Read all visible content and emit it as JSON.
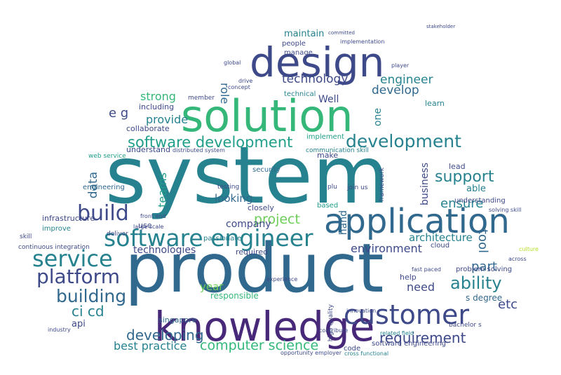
{
  "words": {
    "system": "system",
    "product": "product",
    "solution": "solution",
    "design": "design",
    "knowledge": "knowledge",
    "application": "application",
    "software_engineer": "software engineer",
    "customer": "customer",
    "service": "service",
    "platform": "platform",
    "build": "build",
    "building": "building",
    "developing": "developing",
    "software_development": "software development",
    "development": "development",
    "ability": "ability",
    "support": "support",
    "project": "project",
    "requirement": "requirement",
    "computer_science": "computer science",
    "best_practice": "best practice",
    "engineer": "engineer",
    "develop": "develop",
    "technology": "technology",
    "maintain": "maintain",
    "environment": "environment",
    "architecture": "architecture",
    "ensure": "ensure",
    "part": "part",
    "etc": "etc",
    "need": "need",
    "year": "year",
    "company": "company",
    "strong": "strong",
    "provide": "provide",
    "collaborate": "collaborate",
    "including": "including",
    "looking": "looking",
    "data": "data",
    "ci_cd": "ci cd",
    "api": "api",
    "e_g": "e g",
    "infrastructure": "infrastructure",
    "improve": "improve",
    "engineering": "engineering",
    "web_service": "web service",
    "understand": "understand",
    "technologies": "technologies",
    "singapore": "singapore",
    "required": "required",
    "closely": "closely",
    "well": "Well",
    "business": "business",
    "hand": "hand",
    "responsible": "responsible",
    "security": "security",
    "implement": "implement",
    "technical": "technical",
    "people": "people",
    "cloud": "cloud",
    "based": "based",
    "code": "code",
    "team": "teams",
    "role": "role",
    "tool": "tool",
    "one": "one",
    "help": "help",
    "learn": "learn",
    "lead": "lead",
    "use": "use",
    "make": "make",
    "able": "able",
    "understanding": "understanding",
    "software_engineering": "software engineering",
    "passionate": "passionate",
    "problem_solving": "problem solving",
    "solving_skill": "solving skill",
    "join_us": "join us",
    "plus": "plu",
    "distributed_system": "distributed system",
    "communication_skill": "communication skill",
    "bachelor_s_degree": "bachelor s",
    "s_degree": "s degree",
    "opportunity_employer": "opportunity employer",
    "cross_functional": "cross functional",
    "member": "member",
    "experience": "experience",
    "deliver": "deliver",
    "fast_paced": "fast paced",
    "related_field": "related field",
    "skill": "skill",
    "industry": "industry",
    "continuous_integration": "continuous integration",
    "concept": "concept",
    "drive": "drive",
    "global": "global",
    "manage": "manage",
    "implementation": "implementation",
    "committed": "committed",
    "front_end": "front end",
    "framework": "framework",
    "across": "across",
    "culture": "culture",
    "contribute": "contribute",
    "high_quality": "high quality",
    "innovation": "innovation",
    "large_scale": "large scale",
    "testing": "testing",
    "player": "player",
    "stakeholder": "stakeholder"
  },
  "colors": {
    "c1": "#440154",
    "c2": "#482878",
    "c3": "#3e4989",
    "c4": "#31688e",
    "c5": "#26828e",
    "c6": "#1f9e89",
    "c7": "#35b779",
    "c8": "#6ece58",
    "c9": "#b5de2b",
    "c10": "#fde725"
  }
}
